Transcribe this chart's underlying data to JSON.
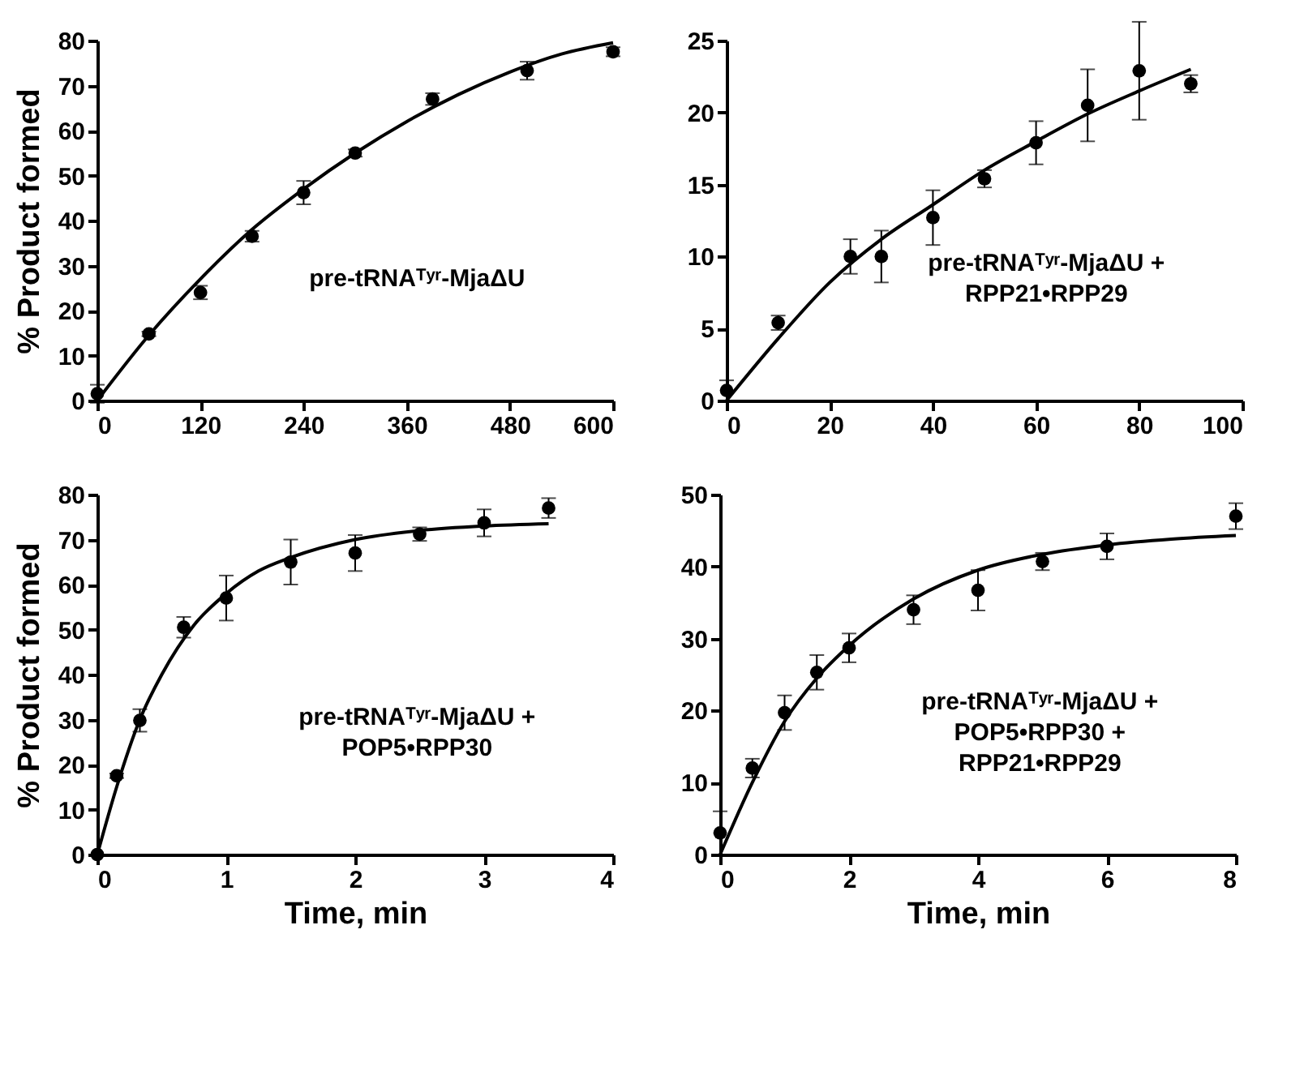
{
  "chart_data": [
    {
      "type": "scatter",
      "ylabel": "% Product formed",
      "annotations": [
        "pre-tRNAᵀʸʳ-MjaΔU"
      ],
      "xlim": [
        0,
        600
      ],
      "xticks": [
        0,
        120,
        240,
        360,
        480,
        600
      ],
      "ylim": [
        0,
        80
      ],
      "yticks": [
        0,
        10,
        20,
        30,
        40,
        50,
        60,
        70,
        80
      ],
      "series": [
        {
          "color": "#000000",
          "marker": "circle",
          "x": [
            0,
            60,
            120,
            180,
            240,
            300,
            390,
            500,
            600
          ],
          "values": [
            1.5,
            14.8,
            24,
            36.5,
            46.2,
            55,
            67,
            73.3,
            77.5
          ],
          "errors": [
            2,
            0.5,
            1.5,
            1.2,
            2.6,
            0.8,
            1.3,
            2,
            1
          ]
        },
        {
          "type": "line",
          "color": "#000000",
          "x": [
            0,
            60,
            120,
            180,
            240,
            300,
            360,
            420,
            480,
            540,
            600
          ],
          "values": [
            0,
            14.5,
            27,
            38,
            47,
            55,
            62,
            68,
            73,
            77,
            79.5
          ]
        }
      ]
    },
    {
      "type": "scatter",
      "annotations": [
        "pre-tRNAᵀʸʳ-MjaΔU +",
        "RPP21•RPP29"
      ],
      "xlim": [
        0,
        100
      ],
      "xticks": [
        0,
        20,
        40,
        60,
        80,
        100
      ],
      "ylim": [
        0,
        25
      ],
      "yticks": [
        0,
        5,
        10,
        15,
        20,
        25
      ],
      "series": [
        {
          "color": "#000000",
          "marker": "circle",
          "x": [
            0,
            10,
            24,
            30,
            40,
            50,
            60,
            70,
            80,
            90
          ],
          "values": [
            0.7,
            5.4,
            10,
            10,
            12.7,
            15.4,
            17.9,
            20.5,
            22.9,
            22
          ],
          "errors": [
            0.7,
            0.5,
            1.2,
            1.8,
            1.9,
            0.6,
            1.5,
            2.5,
            3.4,
            0.6
          ]
        },
        {
          "type": "line",
          "color": "#000000",
          "x": [
            0,
            10,
            20,
            30,
            40,
            50,
            60,
            70,
            80,
            90
          ],
          "values": [
            0,
            4.3,
            8.2,
            11.2,
            13.6,
            16,
            18,
            19.9,
            21.5,
            23
          ]
        }
      ]
    },
    {
      "type": "scatter",
      "ylabel": "% Product formed",
      "xlabel": "Time, min",
      "annotations": [
        "pre-tRNAᵀʸʳ-MjaΔU +",
        "POP5•RPP30"
      ],
      "xlim": [
        0,
        4
      ],
      "xticks": [
        0,
        1,
        2,
        3,
        4
      ],
      "ylim": [
        0,
        80
      ],
      "yticks": [
        0,
        10,
        20,
        30,
        40,
        50,
        60,
        70,
        80
      ],
      "series": [
        {
          "color": "#000000",
          "marker": "circle",
          "x": [
            0,
            0.15,
            0.33,
            0.67,
            1,
            1.5,
            2,
            2.5,
            3,
            3.5
          ],
          "values": [
            0,
            17.5,
            29.8,
            50.5,
            57,
            65,
            67,
            71.2,
            73.7,
            77
          ],
          "errors": [
            null,
            0.5,
            2.5,
            2.3,
            5,
            5,
            4,
            1.5,
            3,
            2.2
          ]
        },
        {
          "type": "line",
          "color": "#000000",
          "x": [
            0,
            0.15,
            0.33,
            0.5,
            0.75,
            1,
            1.25,
            1.5,
            2,
            2.5,
            3,
            3.5
          ],
          "values": [
            0,
            15,
            30,
            40,
            51,
            58,
            63,
            66,
            70,
            72,
            73,
            73.5
          ]
        }
      ]
    },
    {
      "type": "scatter",
      "xlabel": "Time, min",
      "annotations": [
        "pre-tRNAᵀʸʳ-MjaΔU +",
        "POP5•RPP30 +",
        "RPP21•RPP29"
      ],
      "xlim": [
        0,
        8
      ],
      "xticks": [
        0,
        2,
        4,
        6,
        8
      ],
      "ylim": [
        0,
        50
      ],
      "yticks": [
        0,
        10,
        20,
        30,
        40,
        50
      ],
      "series": [
        {
          "color": "#000000",
          "marker": "circle",
          "x": [
            0,
            0.5,
            1,
            1.5,
            2,
            3,
            4,
            5,
            6,
            8
          ],
          "values": [
            3,
            12,
            19.7,
            25.3,
            28.7,
            34,
            36.7,
            40.7,
            42.8,
            47
          ],
          "errors": [
            3,
            1.3,
            2.4,
            2.4,
            2,
            2,
            2.8,
            1.2,
            1.8,
            1.8
          ]
        },
        {
          "type": "line",
          "color": "#000000",
          "x": [
            0,
            0.5,
            1,
            1.5,
            2,
            3,
            4,
            5,
            6,
            7,
            8
          ],
          "values": [
            0,
            10,
            18.5,
            24.5,
            29,
            35.5,
            39.5,
            41.7,
            43,
            43.8,
            44.3
          ]
        }
      ]
    }
  ]
}
